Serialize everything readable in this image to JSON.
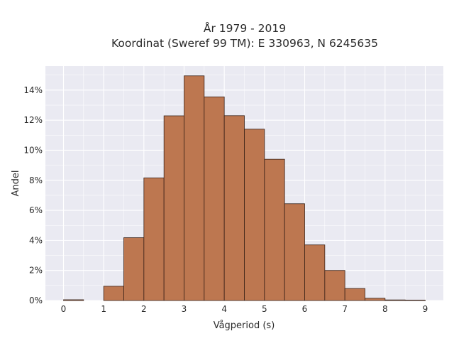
{
  "chart_data": {
    "type": "bar",
    "title_line1": "År 1979 - 2019",
    "title_line2": "Koordinat (Sweref 99 TM): E 330963, N 6245635",
    "xlabel": "Vågperiod (s)",
    "ylabel": "Andel",
    "bin_width": 0.5,
    "bins": [
      {
        "start": 0.0,
        "value": 0.0005
      },
      {
        "start": 0.5,
        "value": 0.0
      },
      {
        "start": 1.0,
        "value": 0.0095
      },
      {
        "start": 1.5,
        "value": 0.0418
      },
      {
        "start": 2.0,
        "value": 0.0816
      },
      {
        "start": 2.5,
        "value": 0.1229
      },
      {
        "start": 3.0,
        "value": 0.1495
      },
      {
        "start": 3.5,
        "value": 0.1355
      },
      {
        "start": 4.0,
        "value": 0.123
      },
      {
        "start": 4.5,
        "value": 0.114
      },
      {
        "start": 5.0,
        "value": 0.094
      },
      {
        "start": 5.5,
        "value": 0.0644
      },
      {
        "start": 6.0,
        "value": 0.037
      },
      {
        "start": 6.5,
        "value": 0.02
      },
      {
        "start": 7.0,
        "value": 0.008
      },
      {
        "start": 7.5,
        "value": 0.0015
      },
      {
        "start": 8.0,
        "value": 0.0004
      },
      {
        "start": 8.5,
        "value": 0.0003
      }
    ],
    "xlim": [
      -0.45,
      9.45
    ],
    "ylim": [
      0,
      0.156
    ],
    "x_ticks": [
      {
        "value": 0,
        "label": "0"
      },
      {
        "value": 1,
        "label": "1"
      },
      {
        "value": 2,
        "label": "2"
      },
      {
        "value": 3,
        "label": "3"
      },
      {
        "value": 4,
        "label": "4"
      },
      {
        "value": 5,
        "label": "5"
      },
      {
        "value": 6,
        "label": "6"
      },
      {
        "value": 7,
        "label": "7"
      },
      {
        "value": 8,
        "label": "8"
      },
      {
        "value": 9,
        "label": "9"
      }
    ],
    "y_ticks": [
      {
        "value": 0.0,
        "label": "0%"
      },
      {
        "value": 0.02,
        "label": "2%"
      },
      {
        "value": 0.04,
        "label": "4%"
      },
      {
        "value": 0.06,
        "label": "6%"
      },
      {
        "value": 0.08,
        "label": "8%"
      },
      {
        "value": 0.1,
        "label": "10%"
      },
      {
        "value": 0.12,
        "label": "12%"
      },
      {
        "value": 0.14,
        "label": "14%"
      }
    ],
    "grid": true,
    "colors": {
      "bar_fill": "#bd7750",
      "bar_edge": "#3a2218",
      "plot_background": "#eaeaf2",
      "grid": "#ffffff"
    }
  }
}
